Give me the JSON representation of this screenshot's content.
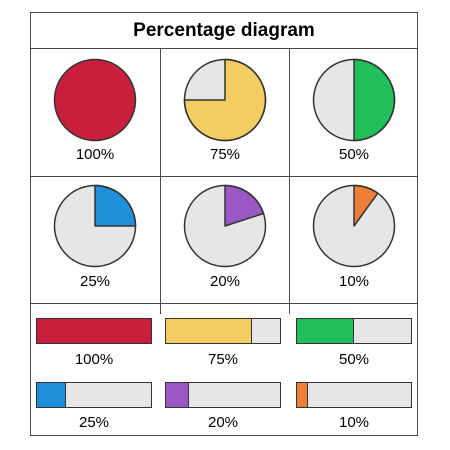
{
  "title": "Percentage diagram",
  "pies": [
    {
      "label": "100%",
      "value": 100,
      "color": "#c8203c"
    },
    {
      "label": "75%",
      "value": 75,
      "color": "#f3cd61"
    },
    {
      "label": "50%",
      "value": 50,
      "color": "#20bf5a"
    },
    {
      "label": "25%",
      "value": 25,
      "color": "#1e8fd8"
    },
    {
      "label": "20%",
      "value": 20,
      "color": "#9a58c4"
    },
    {
      "label": "10%",
      "value": 10,
      "color": "#ef7f36"
    }
  ],
  "bars": [
    {
      "label": "100%",
      "value": 100,
      "color": "#c8203c"
    },
    {
      "label": "75%",
      "value": 75,
      "color": "#f3cd61"
    },
    {
      "label": "50%",
      "value": 50,
      "color": "#20bf5a"
    },
    {
      "label": "25%",
      "value": 25,
      "color": "#1e8fd8"
    },
    {
      "label": "20%",
      "value": 20,
      "color": "#9a58c4"
    },
    {
      "label": "10%",
      "value": 10,
      "color": "#ef7f36"
    }
  ],
  "empty_color": "#e6e6e6"
}
